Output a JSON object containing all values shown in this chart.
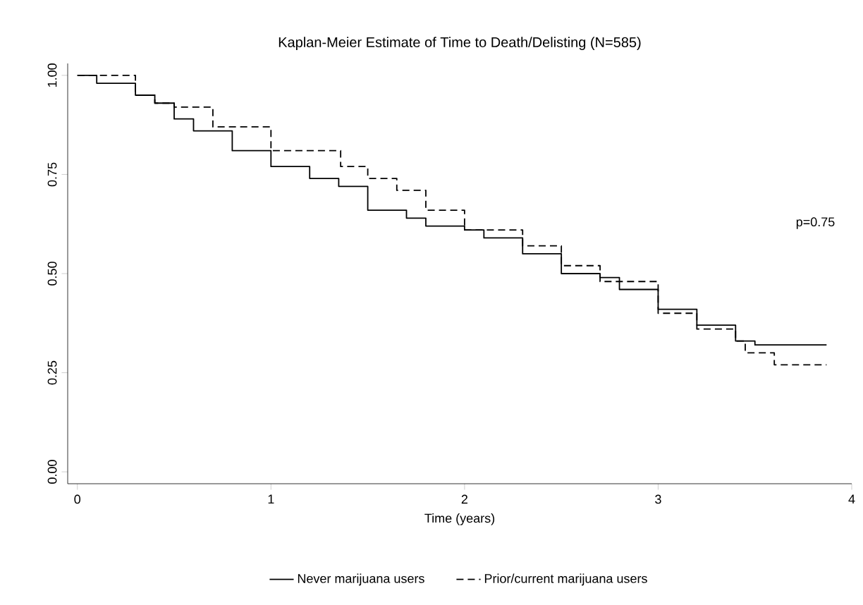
{
  "chart_data": {
    "type": "step",
    "title": "Kaplan-Meier Estimate of Time to Death/Delisting (N=585)",
    "xlabel": "Time (years)",
    "xlim": [
      -0.05,
      4
    ],
    "ylim": [
      -0.03,
      1.03
    ],
    "xticks": [
      0,
      1,
      2,
      3,
      4
    ],
    "yticks": [
      {
        "value": 0,
        "label": "0.00"
      },
      {
        "value": 0.25,
        "label": "0.25"
      },
      {
        "value": 0.5,
        "label": "0.50"
      },
      {
        "value": 0.75,
        "label": "0.75"
      },
      {
        "value": 1,
        "label": "1.00"
      }
    ],
    "legend": "bottom",
    "grid": false,
    "annotations": [
      "p=0.75"
    ],
    "series": [
      {
        "name": "Never marijuana users",
        "color": "#000000",
        "line_style": "solid",
        "x": [
          0,
          0.1,
          0.3,
          0.4,
          0.5,
          0.6,
          0.8,
          1.0,
          1.2,
          1.35,
          1.5,
          1.7,
          1.8,
          2.0,
          2.1,
          2.3,
          2.5,
          2.7,
          2.8,
          3.0,
          3.2,
          3.4,
          3.5,
          3.87
        ],
        "values": [
          1.0,
          0.98,
          0.95,
          0.93,
          0.89,
          0.86,
          0.81,
          0.77,
          0.74,
          0.72,
          0.66,
          0.64,
          0.62,
          0.61,
          0.59,
          0.55,
          0.5,
          0.49,
          0.46,
          0.41,
          0.37,
          0.33,
          0.32,
          0.32
        ]
      },
      {
        "name": "Prior/current marijuana users",
        "color": "#000000",
        "line_style": "dashed",
        "x": [
          0,
          0.3,
          0.4,
          0.5,
          0.7,
          1.0,
          1.36,
          1.5,
          1.65,
          1.8,
          2.0,
          2.3,
          2.5,
          2.7,
          3.0,
          3.2,
          3.4,
          3.45,
          3.6,
          3.87
        ],
        "values": [
          1.0,
          0.95,
          0.93,
          0.92,
          0.87,
          0.81,
          0.77,
          0.74,
          0.71,
          0.66,
          0.61,
          0.57,
          0.52,
          0.48,
          0.4,
          0.36,
          0.33,
          0.3,
          0.27,
          0.27
        ]
      }
    ]
  }
}
